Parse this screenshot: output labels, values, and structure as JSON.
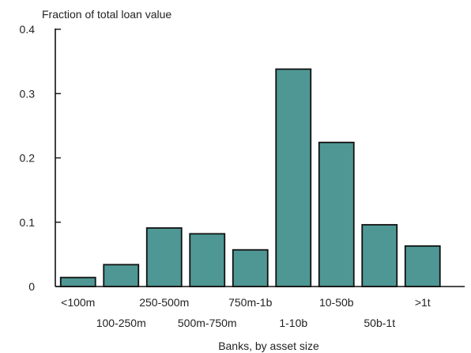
{
  "chart_data": {
    "type": "bar",
    "ylabel": "Fraction of total loan value",
    "xlabel": "Banks, by asset size",
    "categories": [
      "<100m",
      "100-250m",
      "250-500m",
      "500m-750m",
      "750m-1b",
      "1-10b",
      "10-50b",
      "50b-1t",
      ">1t"
    ],
    "values": [
      0.014,
      0.034,
      0.091,
      0.082,
      0.057,
      0.338,
      0.224,
      0.096,
      0.063
    ],
    "ylim": [
      0,
      0.4
    ],
    "yticks": [
      0,
      0.1,
      0.2,
      0.3,
      0.4
    ],
    "ytick_labels": [
      "0",
      "0.1",
      "0.2",
      "0.3",
      "0.4"
    ],
    "grid": false,
    "legend": "none",
    "bar_color": "#4e9794",
    "edge_color": "#111111"
  }
}
